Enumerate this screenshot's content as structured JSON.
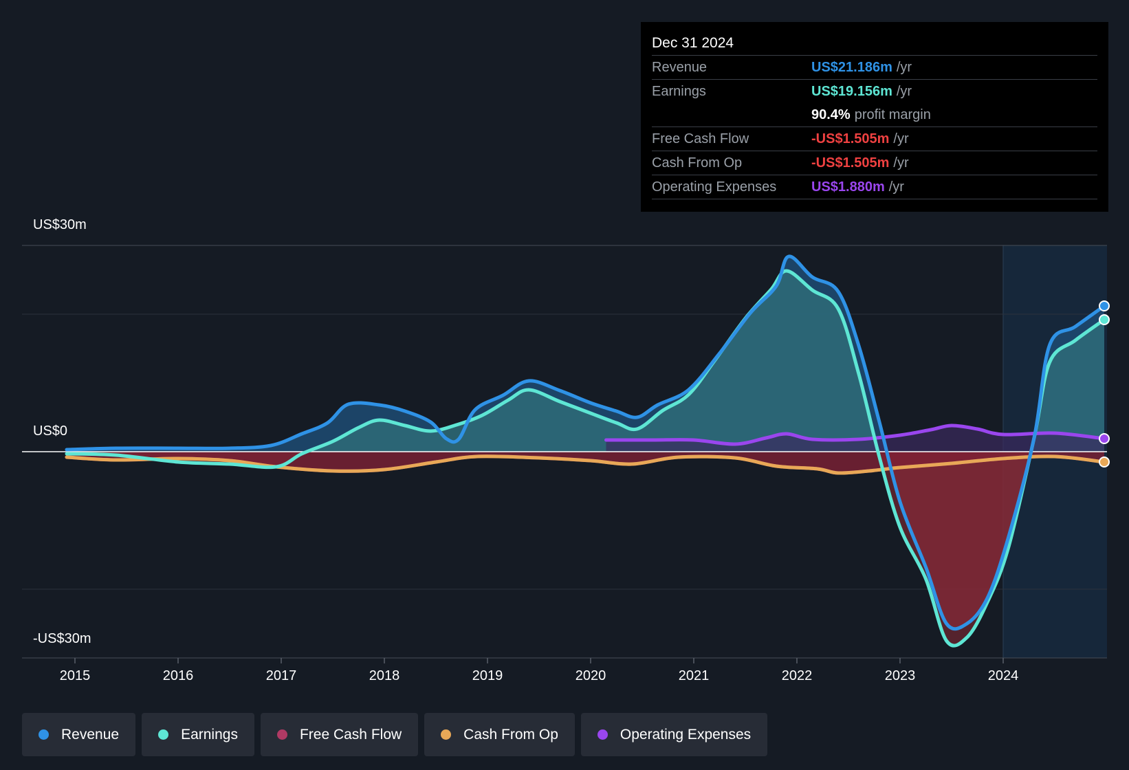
{
  "chart_data": {
    "type": "area",
    "title": "",
    "xlabel": "",
    "ylabel": "",
    "ylim": [
      -30,
      30
    ],
    "x_ticks": [
      "2015",
      "2016",
      "2017",
      "2018",
      "2019",
      "2020",
      "2021",
      "2022",
      "2023",
      "2024"
    ],
    "y_ticks": [
      "US$30m",
      "US$0",
      "-US$30m"
    ],
    "x_range": [
      2014.5,
      2025.0
    ],
    "forecast_start": 2024.0,
    "series": [
      {
        "name": "Revenue",
        "color": "#2f92e6",
        "points": [
          [
            2014.92,
            0.3
          ],
          [
            2015.4,
            0.5
          ],
          [
            2016.0,
            0.5
          ],
          [
            2016.5,
            0.5
          ],
          [
            2016.9,
            0.9
          ],
          [
            2017.2,
            2.6
          ],
          [
            2017.45,
            4.2
          ],
          [
            2017.65,
            6.9
          ],
          [
            2017.95,
            6.8
          ],
          [
            2018.2,
            5.9
          ],
          [
            2018.45,
            4.3
          ],
          [
            2018.6,
            1.9
          ],
          [
            2018.72,
            1.8
          ],
          [
            2018.88,
            6.1
          ],
          [
            2019.15,
            8.2
          ],
          [
            2019.4,
            10.3
          ],
          [
            2019.7,
            8.9
          ],
          [
            2020.0,
            7.1
          ],
          [
            2020.25,
            5.9
          ],
          [
            2020.45,
            5.0
          ],
          [
            2020.65,
            6.8
          ],
          [
            2020.95,
            9.0
          ],
          [
            2021.25,
            14.3
          ],
          [
            2021.55,
            20.2
          ],
          [
            2021.8,
            24.1
          ],
          [
            2021.92,
            28.4
          ],
          [
            2022.15,
            25.4
          ],
          [
            2022.4,
            23.3
          ],
          [
            2022.6,
            15.4
          ],
          [
            2022.8,
            4.3
          ],
          [
            2023.0,
            -7.3
          ],
          [
            2023.25,
            -16.8
          ],
          [
            2023.45,
            -25.0
          ],
          [
            2023.65,
            -25.0
          ],
          [
            2023.85,
            -21.2
          ],
          [
            2024.05,
            -12.5
          ],
          [
            2024.3,
            2.0
          ],
          [
            2024.45,
            15.5
          ],
          [
            2024.7,
            18.2
          ],
          [
            2024.98,
            21.2
          ]
        ]
      },
      {
        "name": "Earnings",
        "color": "#5ee6d4",
        "points": [
          [
            2014.92,
            -0.3
          ],
          [
            2015.4,
            -0.5
          ],
          [
            2016.0,
            -1.5
          ],
          [
            2016.5,
            -1.8
          ],
          [
            2016.95,
            -2.2
          ],
          [
            2017.2,
            -0.3
          ],
          [
            2017.5,
            1.5
          ],
          [
            2017.75,
            3.5
          ],
          [
            2017.95,
            4.6
          ],
          [
            2018.2,
            3.8
          ],
          [
            2018.45,
            3.0
          ],
          [
            2018.7,
            3.9
          ],
          [
            2018.95,
            5.3
          ],
          [
            2019.2,
            7.5
          ],
          [
            2019.4,
            9.0
          ],
          [
            2019.7,
            7.3
          ],
          [
            2020.0,
            5.6
          ],
          [
            2020.25,
            4.2
          ],
          [
            2020.45,
            3.3
          ],
          [
            2020.7,
            6.0
          ],
          [
            2020.95,
            8.3
          ],
          [
            2021.2,
            13.2
          ],
          [
            2021.5,
            19.4
          ],
          [
            2021.75,
            23.6
          ],
          [
            2021.9,
            26.3
          ],
          [
            2022.15,
            23.5
          ],
          [
            2022.4,
            20.8
          ],
          [
            2022.6,
            11.3
          ],
          [
            2022.8,
            -0.8
          ],
          [
            2023.0,
            -11.0
          ],
          [
            2023.25,
            -18.5
          ],
          [
            2023.45,
            -27.5
          ],
          [
            2023.65,
            -27.0
          ],
          [
            2023.85,
            -21.8
          ],
          [
            2024.05,
            -14.0
          ],
          [
            2024.3,
            2.0
          ],
          [
            2024.45,
            13.0
          ],
          [
            2024.7,
            16.2
          ],
          [
            2024.98,
            19.2
          ]
        ]
      },
      {
        "name": "Free Cash Flow",
        "color": "#b03a64",
        "points": [
          [
            2014.92,
            -0.8
          ],
          [
            2015.4,
            -1.2
          ],
          [
            2016.0,
            -1.0
          ],
          [
            2016.5,
            -1.3
          ],
          [
            2016.95,
            -2.2
          ],
          [
            2017.5,
            -2.8
          ],
          [
            2018.0,
            -2.6
          ],
          [
            2018.5,
            -1.5
          ],
          [
            2018.9,
            -0.7
          ],
          [
            2019.5,
            -0.9
          ],
          [
            2020.0,
            -1.3
          ],
          [
            2020.4,
            -1.8
          ],
          [
            2020.85,
            -0.8
          ],
          [
            2021.4,
            -0.9
          ],
          [
            2021.8,
            -2.1
          ],
          [
            2022.2,
            -2.5
          ],
          [
            2022.4,
            -3.1
          ],
          [
            2022.7,
            -2.8
          ],
          [
            2023.0,
            -2.3
          ],
          [
            2023.5,
            -1.7
          ],
          [
            2024.0,
            -1.0
          ],
          [
            2024.5,
            -0.7
          ],
          [
            2024.98,
            -1.5
          ]
        ]
      },
      {
        "name": "Cash From Op",
        "color": "#e8a857",
        "points": [
          [
            2014.92,
            -0.8
          ],
          [
            2015.4,
            -1.2
          ],
          [
            2016.0,
            -1.0
          ],
          [
            2016.5,
            -1.3
          ],
          [
            2016.95,
            -2.2
          ],
          [
            2017.5,
            -2.8
          ],
          [
            2018.0,
            -2.6
          ],
          [
            2018.5,
            -1.5
          ],
          [
            2018.9,
            -0.7
          ],
          [
            2019.5,
            -0.9
          ],
          [
            2020.0,
            -1.3
          ],
          [
            2020.4,
            -1.8
          ],
          [
            2020.85,
            -0.8
          ],
          [
            2021.4,
            -0.9
          ],
          [
            2021.8,
            -2.1
          ],
          [
            2022.2,
            -2.5
          ],
          [
            2022.4,
            -3.1
          ],
          [
            2022.7,
            -2.8
          ],
          [
            2023.0,
            -2.3
          ],
          [
            2023.5,
            -1.7
          ],
          [
            2024.0,
            -1.0
          ],
          [
            2024.5,
            -0.7
          ],
          [
            2024.98,
            -1.5
          ]
        ]
      },
      {
        "name": "Operating Expenses",
        "color": "#9a46ee",
        "points": [
          [
            2020.15,
            1.7
          ],
          [
            2020.6,
            1.7
          ],
          [
            2021.0,
            1.7
          ],
          [
            2021.4,
            1.1
          ],
          [
            2021.7,
            2.0
          ],
          [
            2021.9,
            2.6
          ],
          [
            2022.15,
            1.8
          ],
          [
            2022.6,
            1.8
          ],
          [
            2023.0,
            2.4
          ],
          [
            2023.3,
            3.2
          ],
          [
            2023.5,
            3.8
          ],
          [
            2023.75,
            3.3
          ],
          [
            2024.0,
            2.5
          ],
          [
            2024.5,
            2.7
          ],
          [
            2024.98,
            1.9
          ]
        ]
      }
    ]
  },
  "tooltip": {
    "date": "Dec 31 2024",
    "rows": [
      {
        "label": "Revenue",
        "value": "US$21.186m",
        "unit": "/yr",
        "color": "#2f92e6"
      },
      {
        "label": "Earnings",
        "value": "US$19.156m",
        "unit": "/yr",
        "color": "#5ee6d4"
      },
      {
        "label": "",
        "value": "90.4%",
        "unit": "profit margin",
        "color": "#ffffff"
      },
      {
        "label": "Free Cash Flow",
        "value": "-US$1.505m",
        "unit": "/yr",
        "color": "#ef4141"
      },
      {
        "label": "Cash From Op",
        "value": "-US$1.505m",
        "unit": "/yr",
        "color": "#ef4141"
      },
      {
        "label": "Operating Expenses",
        "value": "US$1.880m",
        "unit": "/yr",
        "color": "#9a46ee"
      }
    ]
  },
  "legend": [
    {
      "label": "Revenue",
      "color": "#2f92e6"
    },
    {
      "label": "Earnings",
      "color": "#5ee6d4"
    },
    {
      "label": "Free Cash Flow",
      "color": "#b03a64"
    },
    {
      "label": "Cash From Op",
      "color": "#e8a857"
    },
    {
      "label": "Operating Expenses",
      "color": "#9a46ee"
    }
  ]
}
